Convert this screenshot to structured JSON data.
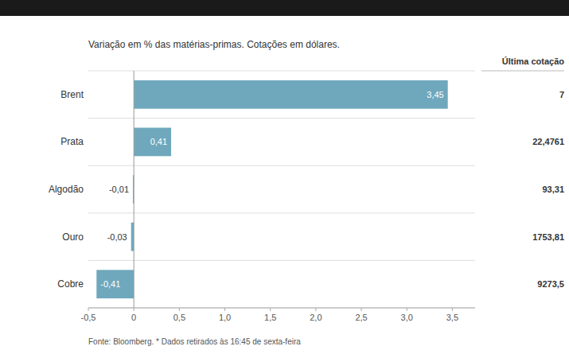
{
  "chart_data": {
    "type": "bar",
    "orientation": "horizontal",
    "title": "Variação em % das matérias-primas. Cotações em dólares.",
    "categories": [
      "Brent",
      "Prata",
      "Algodão",
      "Ouro",
      "Cobre"
    ],
    "values": [
      3.45,
      0.41,
      -0.01,
      -0.03,
      -0.41
    ],
    "value_labels": [
      "3,45",
      "0,41",
      "-0,01",
      "-0,03",
      "-0,41"
    ],
    "data_labels": true,
    "color": "#6fa8bc",
    "xlim": [
      -0.5,
      3.75
    ],
    "xticks": [
      {
        "value": -0.5,
        "label": "-0,5"
      },
      0,
      {
        "value": 0.5,
        "label": "0,5"
      },
      {
        "value": 1.0,
        "label": "1,0"
      },
      {
        "value": 1.5,
        "label": "1,5"
      },
      {
        "value": 2.0,
        "label": "2,0"
      },
      {
        "value": 2.5,
        "label": "2,5"
      },
      {
        "value": 3.0,
        "label": "3,0"
      },
      {
        "value": 3.5,
        "label": "3,5"
      }
    ],
    "last_price_header": "Última cotação",
    "last_prices": [
      "7",
      "22,4761",
      "93,31",
      "1753,81",
      "9273,5"
    ],
    "footer": "Fonte: Bloomberg.  * Dados retirados às 16:45 de sexta-feira"
  }
}
